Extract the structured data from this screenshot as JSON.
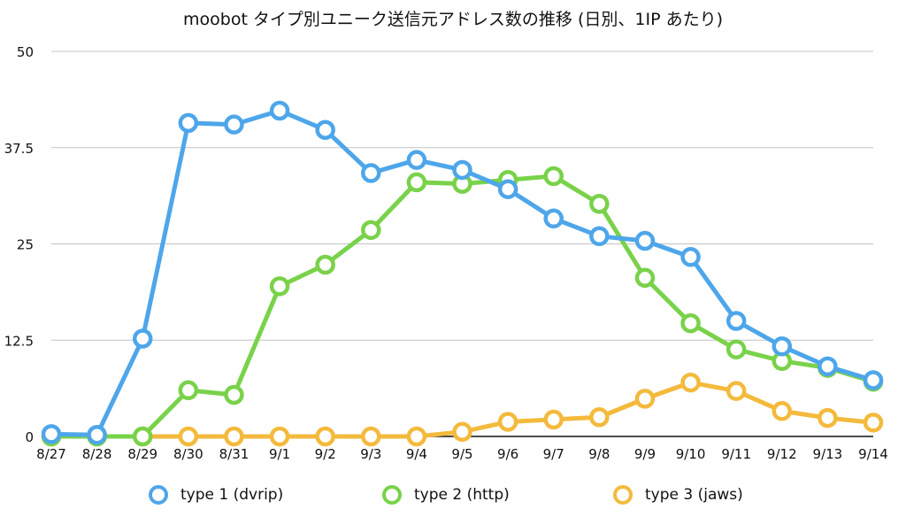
{
  "chart_data": {
    "type": "line",
    "title": "moobot タイプ別ユニーク送信元アドレス数の推移 (日別、1IP あたり)",
    "xlabel": "",
    "ylabel": "",
    "categories": [
      "8/27",
      "8/28",
      "8/29",
      "8/30",
      "8/31",
      "9/1",
      "9/2",
      "9/3",
      "9/4",
      "9/5",
      "9/6",
      "9/7",
      "9/8",
      "9/9",
      "9/10",
      "9/11",
      "9/12",
      "9/13",
      "9/14"
    ],
    "ylim": [
      0,
      50
    ],
    "yticks": [
      "0",
      "12.5",
      "25",
      "37.5",
      "50"
    ],
    "grid": true,
    "legend_position": "bottom",
    "series": [
      {
        "name": "type 1 (dvrip)",
        "color": "#4ea6ea",
        "values": [
          0.3,
          0.2,
          12.7,
          40.7,
          40.5,
          42.3,
          39.8,
          34.2,
          35.9,
          34.6,
          32.1,
          28.3,
          26.0,
          25.4,
          23.3,
          15.0,
          11.7,
          9.1,
          7.3
        ]
      },
      {
        "name": "type 2 (http)",
        "color": "#79d24a",
        "values": [
          0.0,
          0.0,
          0.0,
          6.0,
          5.4,
          19.5,
          22.3,
          26.8,
          33.0,
          32.8,
          33.3,
          33.8,
          30.2,
          20.6,
          14.7,
          11.3,
          9.8,
          8.9,
          7.1
        ]
      },
      {
        "name": "type 3 (jaws)",
        "color": "#f3ba3c",
        "values": [
          0.0,
          0.0,
          0.0,
          0.0,
          0.0,
          0.0,
          0.0,
          0.0,
          0.0,
          0.6,
          1.9,
          2.2,
          2.5,
          4.9,
          7.0,
          5.9,
          3.3,
          2.4,
          1.8
        ]
      }
    ]
  }
}
